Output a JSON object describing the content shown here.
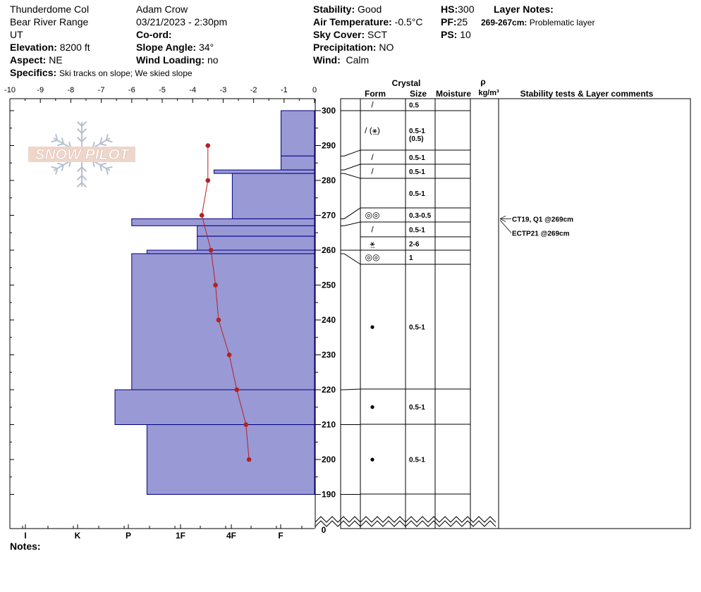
{
  "header": {
    "location": "Thunderdome Col",
    "range": "Bear River Range",
    "state": "UT",
    "elevation_label": "Elevation:",
    "elevation": "8200 ft",
    "aspect_label": "Aspect:",
    "aspect": "NE",
    "observer": "Adam Crow",
    "datetime": "03/21/2023 - 2:30pm",
    "coord_label": "Co-ord:",
    "coord": "",
    "slope_label": "Slope Angle:",
    "slope": "34°",
    "wind_loading_label": "Wind Loading:",
    "wind_loading": "no",
    "stability_label": "Stability:",
    "stability": "Good",
    "air_temp_label": "Air Temperature:",
    "air_temp": "-0.5°C",
    "sky_label": "Sky Cover:",
    "sky": "SCT",
    "precip_label": "Precipitation:",
    "precip": "NO",
    "wind_label": "Wind:",
    "wind": "Calm",
    "hs_label": "HS:",
    "hs": "300",
    "pf_label": "PF:",
    "pf": "25",
    "ps_label": "PS:",
    "ps": "10",
    "layer_notes_label": "Layer Notes:",
    "layer_note_key": "269-267cm:",
    "layer_note_text": "Problematic layer",
    "specifics_label": "Specifics:",
    "specifics": "Ski tracks on slope; We skied slope",
    "notes_label": "Notes:"
  },
  "logo_text": "SNOW PILOT",
  "table_headers": {
    "crystal": "Crystal",
    "form": "Form",
    "size": "Size",
    "moisture": "Moisture",
    "rho": "ρ",
    "rho_unit": "kg/m³",
    "stability": "Stability tests & Layer comments"
  },
  "colors": {
    "hardness_fill": "#9999d6",
    "hardness_stroke": "#000080",
    "temp_line": "#b22222"
  },
  "chart_data": {
    "type": "snow-profile",
    "temp_axis": {
      "ticks": [
        -10,
        -9,
        -8,
        -7,
        -6,
        -5,
        -4,
        -3,
        -2,
        -1,
        0
      ],
      "range": [
        -10,
        0
      ]
    },
    "height_axis": {
      "ticks": [
        190,
        200,
        210,
        220,
        230,
        240,
        250,
        260,
        270,
        280,
        290,
        300
      ],
      "range": [
        185,
        305
      ],
      "zero_label": "0"
    },
    "hardness_labels": [
      "I",
      "K",
      "P",
      "1F",
      "4F",
      "F"
    ],
    "hardness_layers": [
      {
        "top": 300,
        "bottom": 287,
        "temp_units": -1.1
      },
      {
        "top": 287,
        "bottom": 283,
        "temp_units": -1.1
      },
      {
        "top": 283,
        "bottom": 282,
        "temp_units": -3.3
      },
      {
        "top": 282,
        "bottom": 269,
        "temp_units": -2.7
      },
      {
        "top": 269,
        "bottom": 267,
        "temp_units": -6.0
      },
      {
        "top": 267,
        "bottom": 264,
        "temp_units": -3.85
      },
      {
        "top": 264,
        "bottom": 260,
        "temp_units": -3.85
      },
      {
        "top": 260,
        "bottom": 259,
        "temp_units": -5.5
      },
      {
        "top": 259,
        "bottom": 220,
        "temp_units": -6.0
      },
      {
        "top": 220,
        "bottom": 210,
        "temp_units": -6.55
      },
      {
        "top": 210,
        "bottom": 190,
        "temp_units": -5.5
      }
    ],
    "temperature_profile": [
      {
        "height": 290,
        "temp": -3.5
      },
      {
        "height": 280,
        "temp": -3.5
      },
      {
        "height": 270,
        "temp": -3.7
      },
      {
        "height": 260,
        "temp": -3.4
      },
      {
        "height": 250,
        "temp": -3.25
      },
      {
        "height": 240,
        "temp": -3.15
      },
      {
        "height": 230,
        "temp": -2.8
      },
      {
        "height": 220,
        "temp": -2.55
      },
      {
        "height": 210,
        "temp": -2.25
      },
      {
        "height": 200,
        "temp": -2.15
      }
    ],
    "layers": [
      {
        "top": 300,
        "bottom": 300,
        "form": "/",
        "size": "0.5"
      },
      {
        "top": 300,
        "bottom": 287,
        "form": "/ (⚹̲)",
        "size": "0.5-1",
        "size2": "(0.5)"
      },
      {
        "top": 287,
        "bottom": 283,
        "form": "/",
        "size": "0.5-1"
      },
      {
        "top": 283,
        "bottom": 282,
        "form": "/",
        "size": "0.5-1"
      },
      {
        "top": 282,
        "bottom": 269,
        "form": "",
        "size": "0.5-1"
      },
      {
        "top": 269,
        "bottom": 267,
        "form": "◎◎",
        "size": "0.3-0.5"
      },
      {
        "top": 267,
        "bottom": 264,
        "form": "/",
        "size": "0.5-1"
      },
      {
        "top": 264,
        "bottom": 260,
        "form": "⚹̲",
        "size": "2-6"
      },
      {
        "top": 260,
        "bottom": 259,
        "form": "◎◎",
        "size": "1"
      },
      {
        "top": 259,
        "bottom": 220,
        "form": "●",
        "size": "0.5-1"
      },
      {
        "top": 220,
        "bottom": 210,
        "form": "●",
        "size": "0.5-1"
      },
      {
        "top": 210,
        "bottom": 190,
        "form": "●",
        "size": "0.5-1"
      }
    ],
    "stability_tests": [
      "CT19, Q1 @269cm",
      "ECTP21 @269cm"
    ]
  }
}
